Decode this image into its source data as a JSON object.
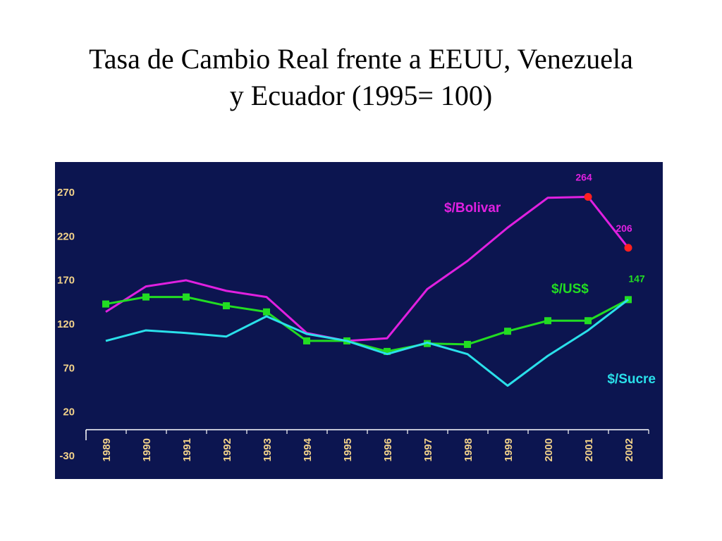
{
  "slide": {
    "title_line1": "Tasa de Cambio Real frente a EEUU, Venezuela",
    "title_line2": "y Ecuador (1995= 100)"
  },
  "chart_data": {
    "type": "line",
    "title": "",
    "xlabel": "",
    "ylabel": "",
    "categories": [
      "1989",
      "1990",
      "1991",
      "1992",
      "1993",
      "1994",
      "1995",
      "1996",
      "1997",
      "1998",
      "1999",
      "2000",
      "2001",
      "2002"
    ],
    "ylim": [
      -30,
      270
    ],
    "yticks": [
      "270",
      "220",
      "170",
      "120",
      "70",
      "20",
      "-30"
    ],
    "grid": false,
    "background": "#0c1550",
    "axis_color": "#ffffff",
    "tick_label_color": "#f2d28a",
    "series": [
      {
        "name": "$/Bolivar",
        "color": "#e020e0",
        "values": [
          133,
          162,
          169,
          157,
          150,
          109,
          100,
          103,
          159,
          191,
          229,
          263,
          264,
          206
        ],
        "markers": false,
        "highlight_points": [
          {
            "index": 12,
            "label": "264",
            "color": "#ff2020"
          },
          {
            "index": 13,
            "label": "206",
            "color": "#ff2020"
          }
        ]
      },
      {
        "name": "$/US$",
        "color": "#22dd22",
        "values": [
          142,
          150,
          150,
          140,
          133,
          100,
          100,
          88,
          97,
          96,
          111,
          123,
          123,
          147
        ],
        "markers": true,
        "end_label": "147"
      },
      {
        "name": "$/Sucre",
        "color": "#2ae0ea",
        "values": [
          100,
          112,
          109,
          105,
          128,
          108,
          100,
          85,
          98,
          85,
          49,
          83,
          112,
          147
        ],
        "markers": false
      }
    ]
  }
}
